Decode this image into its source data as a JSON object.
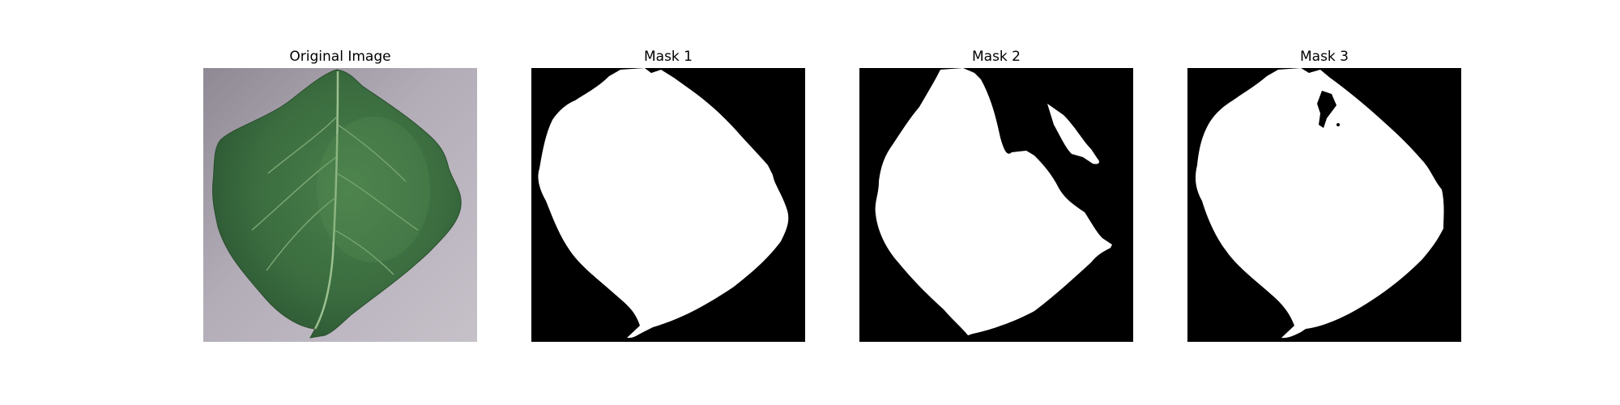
{
  "panels": [
    {
      "title": "Original Image"
    },
    {
      "title": "Mask 1"
    },
    {
      "title": "Mask 2"
    },
    {
      "title": "Mask 3"
    }
  ],
  "colors": {
    "background": "#ffffff",
    "mask_foreground": "#ffffff",
    "mask_background": "#000000",
    "leaf_dark": "#2e5a34",
    "leaf_mid": "#3d7142",
    "leaf_light": "#5b8e5a",
    "vein": "#8fb584",
    "surface": "#b9b3bd"
  }
}
